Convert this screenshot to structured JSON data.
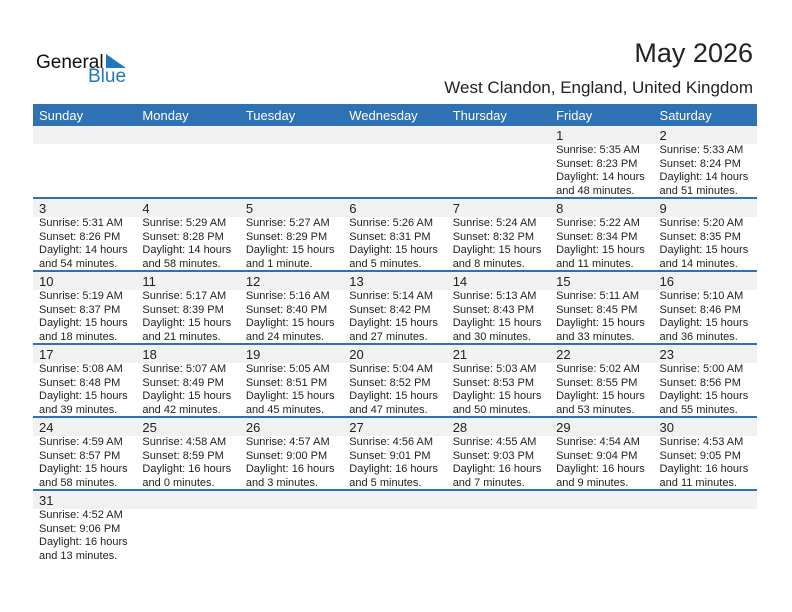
{
  "logo": {
    "line1": "General",
    "line2": "Blue"
  },
  "title": "May 2026",
  "location": "West Clandon, England, United Kingdom",
  "days": [
    "Sunday",
    "Monday",
    "Tuesday",
    "Wednesday",
    "Thursday",
    "Friday",
    "Saturday"
  ],
  "weeks": [
    [
      null,
      null,
      null,
      null,
      null,
      {
        "d": "1",
        "rise": "Sunrise: 5:35 AM",
        "set": "Sunset: 8:23 PM",
        "dl1": "Daylight: 14 hours",
        "dl2": "and 48 minutes."
      },
      {
        "d": "2",
        "rise": "Sunrise: 5:33 AM",
        "set": "Sunset: 8:24 PM",
        "dl1": "Daylight: 14 hours",
        "dl2": "and 51 minutes."
      }
    ],
    [
      {
        "d": "3",
        "rise": "Sunrise: 5:31 AM",
        "set": "Sunset: 8:26 PM",
        "dl1": "Daylight: 14 hours",
        "dl2": "and 54 minutes."
      },
      {
        "d": "4",
        "rise": "Sunrise: 5:29 AM",
        "set": "Sunset: 8:28 PM",
        "dl1": "Daylight: 14 hours",
        "dl2": "and 58 minutes."
      },
      {
        "d": "5",
        "rise": "Sunrise: 5:27 AM",
        "set": "Sunset: 8:29 PM",
        "dl1": "Daylight: 15 hours",
        "dl2": "and 1 minute."
      },
      {
        "d": "6",
        "rise": "Sunrise: 5:26 AM",
        "set": "Sunset: 8:31 PM",
        "dl1": "Daylight: 15 hours",
        "dl2": "and 5 minutes."
      },
      {
        "d": "7",
        "rise": "Sunrise: 5:24 AM",
        "set": "Sunset: 8:32 PM",
        "dl1": "Daylight: 15 hours",
        "dl2": "and 8 minutes."
      },
      {
        "d": "8",
        "rise": "Sunrise: 5:22 AM",
        "set": "Sunset: 8:34 PM",
        "dl1": "Daylight: 15 hours",
        "dl2": "and 11 minutes."
      },
      {
        "d": "9",
        "rise": "Sunrise: 5:20 AM",
        "set": "Sunset: 8:35 PM",
        "dl1": "Daylight: 15 hours",
        "dl2": "and 14 minutes."
      }
    ],
    [
      {
        "d": "10",
        "rise": "Sunrise: 5:19 AM",
        "set": "Sunset: 8:37 PM",
        "dl1": "Daylight: 15 hours",
        "dl2": "and 18 minutes."
      },
      {
        "d": "11",
        "rise": "Sunrise: 5:17 AM",
        "set": "Sunset: 8:39 PM",
        "dl1": "Daylight: 15 hours",
        "dl2": "and 21 minutes."
      },
      {
        "d": "12",
        "rise": "Sunrise: 5:16 AM",
        "set": "Sunset: 8:40 PM",
        "dl1": "Daylight: 15 hours",
        "dl2": "and 24 minutes."
      },
      {
        "d": "13",
        "rise": "Sunrise: 5:14 AM",
        "set": "Sunset: 8:42 PM",
        "dl1": "Daylight: 15 hours",
        "dl2": "and 27 minutes."
      },
      {
        "d": "14",
        "rise": "Sunrise: 5:13 AM",
        "set": "Sunset: 8:43 PM",
        "dl1": "Daylight: 15 hours",
        "dl2": "and 30 minutes."
      },
      {
        "d": "15",
        "rise": "Sunrise: 5:11 AM",
        "set": "Sunset: 8:45 PM",
        "dl1": "Daylight: 15 hours",
        "dl2": "and 33 minutes."
      },
      {
        "d": "16",
        "rise": "Sunrise: 5:10 AM",
        "set": "Sunset: 8:46 PM",
        "dl1": "Daylight: 15 hours",
        "dl2": "and 36 minutes."
      }
    ],
    [
      {
        "d": "17",
        "rise": "Sunrise: 5:08 AM",
        "set": "Sunset: 8:48 PM",
        "dl1": "Daylight: 15 hours",
        "dl2": "and 39 minutes."
      },
      {
        "d": "18",
        "rise": "Sunrise: 5:07 AM",
        "set": "Sunset: 8:49 PM",
        "dl1": "Daylight: 15 hours",
        "dl2": "and 42 minutes."
      },
      {
        "d": "19",
        "rise": "Sunrise: 5:05 AM",
        "set": "Sunset: 8:51 PM",
        "dl1": "Daylight: 15 hours",
        "dl2": "and 45 minutes."
      },
      {
        "d": "20",
        "rise": "Sunrise: 5:04 AM",
        "set": "Sunset: 8:52 PM",
        "dl1": "Daylight: 15 hours",
        "dl2": "and 47 minutes."
      },
      {
        "d": "21",
        "rise": "Sunrise: 5:03 AM",
        "set": "Sunset: 8:53 PM",
        "dl1": "Daylight: 15 hours",
        "dl2": "and 50 minutes."
      },
      {
        "d": "22",
        "rise": "Sunrise: 5:02 AM",
        "set": "Sunset: 8:55 PM",
        "dl1": "Daylight: 15 hours",
        "dl2": "and 53 minutes."
      },
      {
        "d": "23",
        "rise": "Sunrise: 5:00 AM",
        "set": "Sunset: 8:56 PM",
        "dl1": "Daylight: 15 hours",
        "dl2": "and 55 minutes."
      }
    ],
    [
      {
        "d": "24",
        "rise": "Sunrise: 4:59 AM",
        "set": "Sunset: 8:57 PM",
        "dl1": "Daylight: 15 hours",
        "dl2": "and 58 minutes."
      },
      {
        "d": "25",
        "rise": "Sunrise: 4:58 AM",
        "set": "Sunset: 8:59 PM",
        "dl1": "Daylight: 16 hours",
        "dl2": "and 0 minutes."
      },
      {
        "d": "26",
        "rise": "Sunrise: 4:57 AM",
        "set": "Sunset: 9:00 PM",
        "dl1": "Daylight: 16 hours",
        "dl2": "and 3 minutes."
      },
      {
        "d": "27",
        "rise": "Sunrise: 4:56 AM",
        "set": "Sunset: 9:01 PM",
        "dl1": "Daylight: 16 hours",
        "dl2": "and 5 minutes."
      },
      {
        "d": "28",
        "rise": "Sunrise: 4:55 AM",
        "set": "Sunset: 9:03 PM",
        "dl1": "Daylight: 16 hours",
        "dl2": "and 7 minutes."
      },
      {
        "d": "29",
        "rise": "Sunrise: 4:54 AM",
        "set": "Sunset: 9:04 PM",
        "dl1": "Daylight: 16 hours",
        "dl2": "and 9 minutes."
      },
      {
        "d": "30",
        "rise": "Sunrise: 4:53 AM",
        "set": "Sunset: 9:05 PM",
        "dl1": "Daylight: 16 hours",
        "dl2": "and 11 minutes."
      }
    ],
    [
      {
        "d": "31",
        "rise": "Sunrise: 4:52 AM",
        "set": "Sunset: 9:06 PM",
        "dl1": "Daylight: 16 hours",
        "dl2": "and 13 minutes."
      },
      null,
      null,
      null,
      null,
      null,
      null
    ]
  ]
}
